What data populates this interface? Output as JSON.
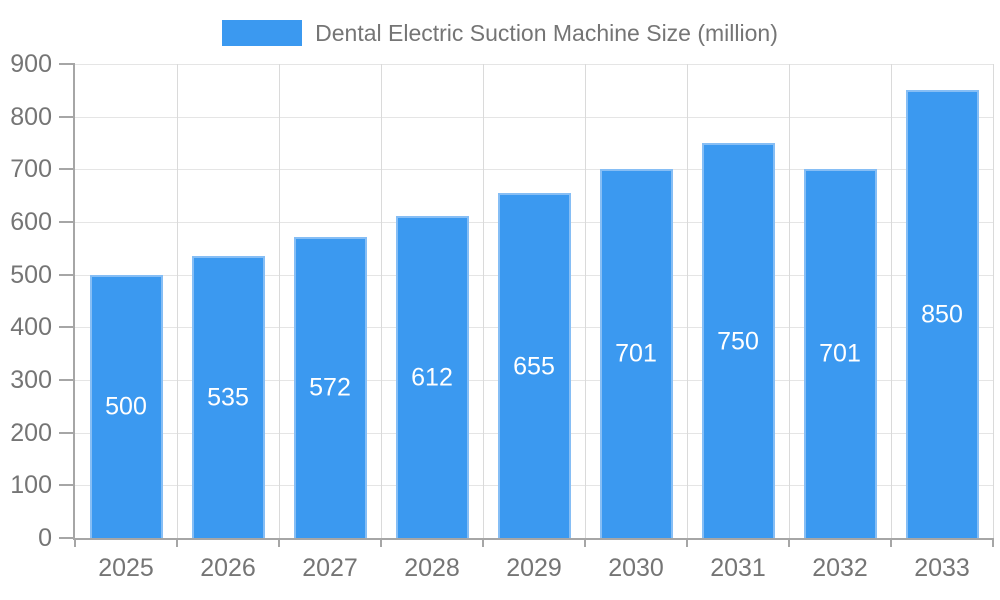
{
  "chart_data": {
    "type": "bar",
    "series_name": "Dental Electric Suction Machine Size (million)",
    "categories": [
      "2025",
      "2026",
      "2027",
      "2028",
      "2029",
      "2030",
      "2031",
      "2032",
      "2033"
    ],
    "values": [
      500,
      535,
      572,
      612,
      655,
      701,
      750,
      701,
      850
    ],
    "title": "",
    "xlabel": "",
    "ylabel": "",
    "ylim": [
      0,
      900
    ],
    "ytick_step": 100,
    "ytick_labels": [
      "0",
      "100",
      "200",
      "300",
      "400",
      "500",
      "600",
      "700",
      "800",
      "900"
    ],
    "grid": true,
    "legend_position": "top-center",
    "value_labels_position": "inside-center",
    "colors": {
      "bar": "#3b99f0",
      "bar_border": "#86bef5",
      "bar_label": "#ffffff",
      "axis_line": "#a6a6a6",
      "tick": "#a6a6a6",
      "axis_text": "#757575",
      "hgrid": "#e5e5e5",
      "vgrid": "#dadada",
      "background": "#ffffff"
    }
  }
}
